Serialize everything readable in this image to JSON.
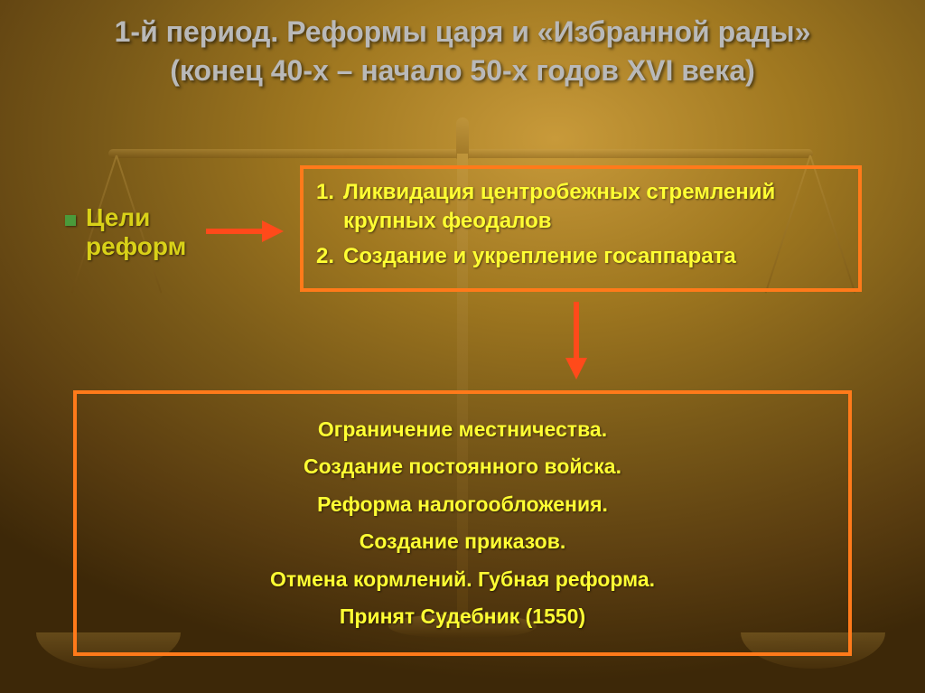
{
  "slide": {
    "title_line1": "1-й период. Реформы царя и «Избранной рады»",
    "title_line2": "(конец 40-х – начало 50-х годов XVI века)",
    "goals_label_line1": "Цели",
    "goals_label_line2": "реформ",
    "goals_box": {
      "item1_num": "1.",
      "item1_text": "Ликвидация центробежных стремлений  крупных феодалов",
      "item2_num": "2.",
      "item2_text": "Создание и укрепление госаппарата"
    },
    "reforms": [
      "Ограничение местничества.",
      "Создание постоянного войска.",
      "Реформа налогообложения.",
      "Создание приказов.",
      "Отмена кормлений. Губная реформа.",
      "Принят Судебник (1550)"
    ]
  },
  "style": {
    "slide_width": 1024,
    "slide_height": 767,
    "title_color": "#b9b9b9",
    "title_fontsize": 32,
    "highlight_text_color": "#ffff33",
    "goals_label_color": "#d9d118",
    "body_fontsize": 24,
    "reforms_fontsize": 23,
    "box_border_color": "#ff7a1a",
    "box_border_width": 4,
    "arrow_color": "#ff4a1a",
    "bullet_color": "#4a9a3a",
    "bg_gradient": {
      "inner": "#c89a3a",
      "mid": "#7a5a18",
      "outer": "#3d2808"
    },
    "font_family": "Arial"
  }
}
